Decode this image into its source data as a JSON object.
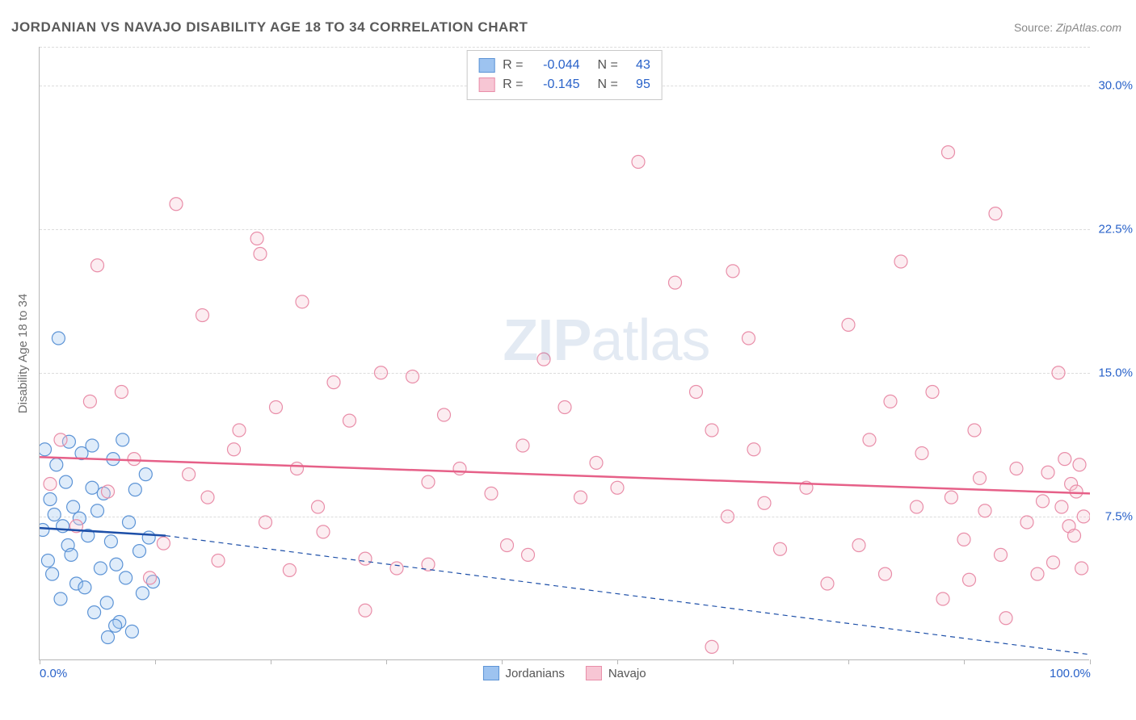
{
  "title": "JORDANIAN VS NAVAJO DISABILITY AGE 18 TO 34 CORRELATION CHART",
  "source_label": "Source:",
  "source_value": "ZipAtlas.com",
  "ylabel": "Disability Age 18 to 34",
  "watermark_a": "ZIP",
  "watermark_b": "atlas",
  "chart": {
    "type": "scatter",
    "background_color": "#ffffff",
    "grid_color": "#dcdcdc",
    "axis_color": "#b7b7b7",
    "xlim": [
      0,
      100
    ],
    "ylim": [
      0,
      32
    ],
    "xtick_positions": [
      0,
      11,
      22,
      33,
      44,
      55,
      66,
      77,
      88,
      100
    ],
    "xtick_labels_shown": {
      "0": "0.0%",
      "100": "100.0%"
    },
    "ytick_positions": [
      7.5,
      15.0,
      22.5,
      30.0
    ],
    "ytick_labels": [
      "7.5%",
      "15.0%",
      "22.5%",
      "30.0%"
    ],
    "marker_radius": 8,
    "marker_stroke_width": 1.2,
    "marker_fill_opacity": 0.32,
    "trendline_width": 2.5,
    "dashline_width": 1.2,
    "dashline_dash": "6,5"
  },
  "series": [
    {
      "key": "jordanians",
      "label": "Jordanians",
      "color_fill": "#9dc3f0",
      "color_stroke": "#5d94d6",
      "color_line": "#1d4fa8",
      "R": "-0.044",
      "N": "43",
      "trend": {
        "x1": 0,
        "y1": 6.9,
        "x2": 12,
        "y2": 6.5
      },
      "dash": {
        "x1": 12,
        "y1": 6.5,
        "x2": 100,
        "y2": 0.3
      },
      "points": [
        [
          0.3,
          6.8
        ],
        [
          0.5,
          11.0
        ],
        [
          0.8,
          5.2
        ],
        [
          1.0,
          8.4
        ],
        [
          1.2,
          4.5
        ],
        [
          1.4,
          7.6
        ],
        [
          1.6,
          10.2
        ],
        [
          1.8,
          16.8
        ],
        [
          2.0,
          3.2
        ],
        [
          2.2,
          7.0
        ],
        [
          2.5,
          9.3
        ],
        [
          2.7,
          6.0
        ],
        [
          3.0,
          5.5
        ],
        [
          3.2,
          8.0
        ],
        [
          3.5,
          4.0
        ],
        [
          3.8,
          7.4
        ],
        [
          4.0,
          10.8
        ],
        [
          4.3,
          3.8
        ],
        [
          4.6,
          6.5
        ],
        [
          5.0,
          9.0
        ],
        [
          5.2,
          2.5
        ],
        [
          5.5,
          7.8
        ],
        [
          5.8,
          4.8
        ],
        [
          6.1,
          8.7
        ],
        [
          6.4,
          3.0
        ],
        [
          6.8,
          6.2
        ],
        [
          7.0,
          10.5
        ],
        [
          7.3,
          5.0
        ],
        [
          7.6,
          2.0
        ],
        [
          7.9,
          11.5
        ],
        [
          8.2,
          4.3
        ],
        [
          8.5,
          7.2
        ],
        [
          8.8,
          1.5
        ],
        [
          9.1,
          8.9
        ],
        [
          9.5,
          5.7
        ],
        [
          9.8,
          3.5
        ],
        [
          10.1,
          9.7
        ],
        [
          10.4,
          6.4
        ],
        [
          10.8,
          4.1
        ],
        [
          6.5,
          1.2
        ],
        [
          7.2,
          1.8
        ],
        [
          5.0,
          11.2
        ],
        [
          2.8,
          11.4
        ]
      ]
    },
    {
      "key": "navajo",
      "label": "Navajo",
      "color_fill": "#f7c6d4",
      "color_stroke": "#e98ea9",
      "color_line": "#e66088",
      "R": "-0.145",
      "N": "95",
      "trend": {
        "x1": 0,
        "y1": 10.6,
        "x2": 100,
        "y2": 8.7
      },
      "dash": null,
      "points": [
        [
          1.0,
          9.2
        ],
        [
          2.0,
          11.5
        ],
        [
          3.5,
          7.0
        ],
        [
          4.8,
          13.5
        ],
        [
          5.5,
          20.6
        ],
        [
          6.5,
          8.8
        ],
        [
          7.8,
          14.0
        ],
        [
          9.0,
          10.5
        ],
        [
          10.5,
          4.3
        ],
        [
          11.8,
          6.1
        ],
        [
          13.0,
          23.8
        ],
        [
          14.2,
          9.7
        ],
        [
          15.5,
          18.0
        ],
        [
          17.0,
          5.2
        ],
        [
          18.5,
          11.0
        ],
        [
          20.7,
          22.0
        ],
        [
          21.0,
          21.2
        ],
        [
          22.5,
          13.2
        ],
        [
          23.8,
          4.7
        ],
        [
          25.0,
          18.7
        ],
        [
          26.5,
          8.0
        ],
        [
          28.0,
          14.5
        ],
        [
          29.5,
          12.5
        ],
        [
          31.0,
          2.6
        ],
        [
          32.5,
          15.0
        ],
        [
          34.0,
          4.8
        ],
        [
          35.5,
          14.8
        ],
        [
          37.0,
          9.3
        ],
        [
          38.5,
          12.8
        ],
        [
          40.0,
          10.0
        ],
        [
          31.0,
          5.3
        ],
        [
          43.0,
          8.7
        ],
        [
          44.5,
          6.0
        ],
        [
          46.0,
          11.2
        ],
        [
          48.0,
          15.7
        ],
        [
          50.0,
          13.2
        ],
        [
          51.5,
          8.5
        ],
        [
          53.0,
          10.3
        ],
        [
          55.0,
          9.0
        ],
        [
          57.0,
          26.0
        ],
        [
          62.5,
          14.0
        ],
        [
          60.5,
          19.7
        ],
        [
          37.0,
          5.0
        ],
        [
          64.0,
          12.0
        ],
        [
          66.0,
          20.3
        ],
        [
          67.5,
          16.8
        ],
        [
          69.0,
          8.2
        ],
        [
          46.5,
          5.5
        ],
        [
          64.0,
          0.7
        ],
        [
          75.0,
          4.0
        ],
        [
          77.0,
          17.5
        ],
        [
          79.0,
          11.5
        ],
        [
          80.5,
          4.5
        ],
        [
          82.0,
          20.8
        ],
        [
          83.5,
          8.0
        ],
        [
          85.0,
          14.0
        ],
        [
          86.5,
          26.5
        ],
        [
          88.0,
          6.3
        ],
        [
          89.5,
          9.5
        ],
        [
          91.0,
          23.3
        ],
        [
          92.0,
          2.2
        ],
        [
          93.0,
          10.0
        ],
        [
          94.0,
          7.2
        ],
        [
          95.0,
          4.5
        ],
        [
          95.5,
          8.3
        ],
        [
          96.0,
          9.8
        ],
        [
          96.5,
          5.1
        ],
        [
          97.0,
          15.0
        ],
        [
          97.3,
          8.0
        ],
        [
          97.6,
          10.5
        ],
        [
          98.0,
          7.0
        ],
        [
          98.2,
          9.2
        ],
        [
          98.5,
          6.5
        ],
        [
          98.7,
          8.8
        ],
        [
          99.0,
          10.2
        ],
        [
          99.2,
          4.8
        ],
        [
          99.4,
          7.5
        ],
        [
          86.0,
          3.2
        ],
        [
          88.5,
          4.2
        ],
        [
          90.0,
          7.8
        ],
        [
          91.5,
          5.5
        ],
        [
          84.0,
          10.8
        ],
        [
          86.8,
          8.5
        ],
        [
          89.0,
          12.0
        ],
        [
          78.0,
          6.0
        ],
        [
          81.0,
          13.5
        ],
        [
          73.0,
          9.0
        ],
        [
          70.5,
          5.8
        ],
        [
          68.0,
          11.0
        ],
        [
          65.5,
          7.5
        ],
        [
          21.5,
          7.2
        ],
        [
          24.5,
          10.0
        ],
        [
          27.0,
          6.7
        ],
        [
          16.0,
          8.5
        ],
        [
          19.0,
          12.0
        ]
      ]
    }
  ],
  "legend_top_labels": {
    "R": "R =",
    "N": "N ="
  }
}
